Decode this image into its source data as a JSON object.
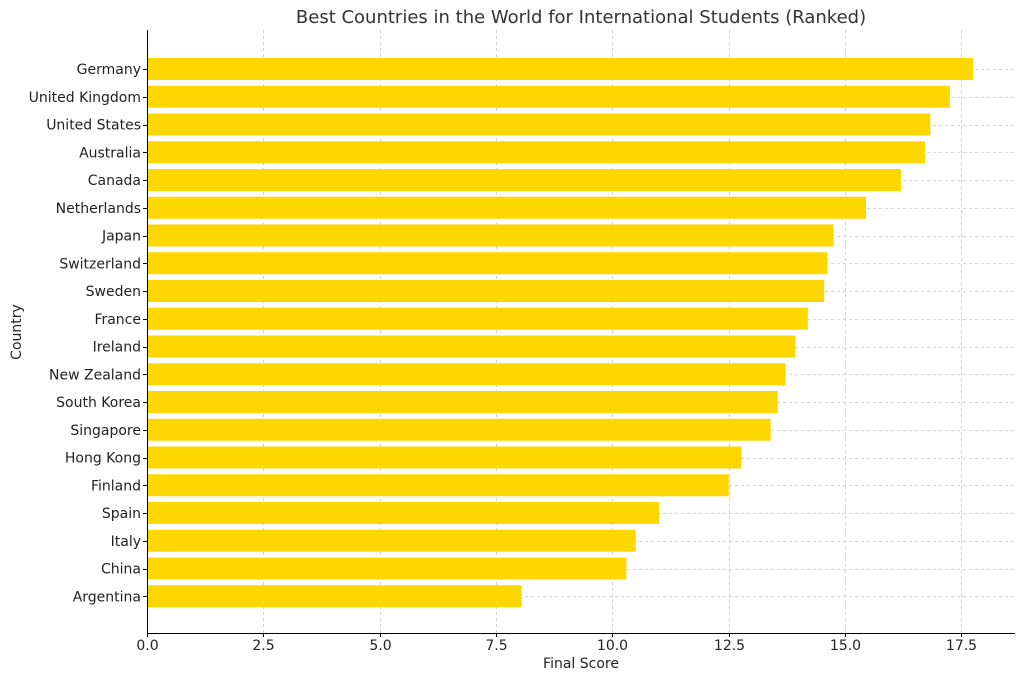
{
  "chart_data": {
    "type": "bar",
    "orientation": "horizontal",
    "title": "Best Countries in the World for International Students (Ranked)",
    "xlabel": "Final Score",
    "ylabel": "Country",
    "categories": [
      "Germany",
      "United Kingdom",
      "United States",
      "Australia",
      "Canada",
      "Netherlands",
      "Japan",
      "Switzerland",
      "Sweden",
      "France",
      "Ireland",
      "New Zealand",
      "South Korea",
      "Singapore",
      "Hong Kong",
      "Finland",
      "Spain",
      "Italy",
      "China",
      "Argentina"
    ],
    "values": [
      17.75,
      17.25,
      16.83,
      16.72,
      16.2,
      15.45,
      14.75,
      14.62,
      14.55,
      14.2,
      13.93,
      13.72,
      13.55,
      13.4,
      12.77,
      12.5,
      11.0,
      10.5,
      10.3,
      8.05
    ],
    "xlim": [
      0,
      18.65
    ],
    "xticks": [
      "0.0",
      "2.5",
      "5.0",
      "7.5",
      "10.0",
      "12.5",
      "15.0",
      "17.5"
    ],
    "grid": true,
    "bar_color": "#ffd700"
  }
}
